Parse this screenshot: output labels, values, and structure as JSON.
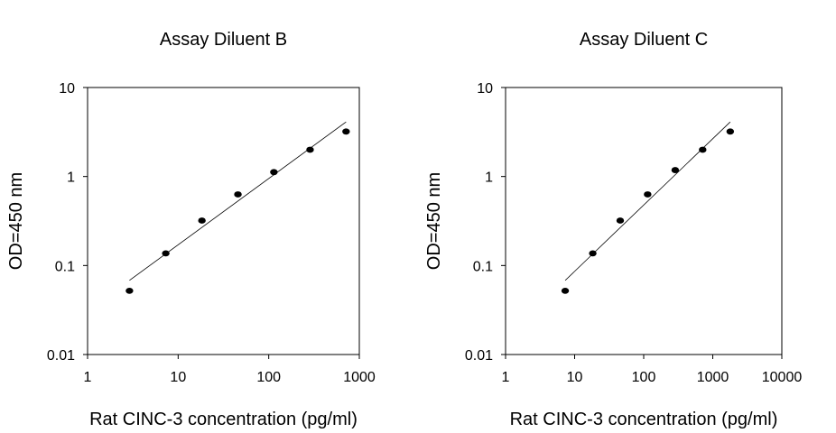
{
  "chart_data": [
    {
      "type": "scatter",
      "title": "Assay Diluent B",
      "xlabel": "Rat CINC-3 concentration (pg/ml)",
      "ylabel": "OD=450 nm",
      "xscale": "log",
      "yscale": "log",
      "xlim": [
        1,
        1000
      ],
      "ylim": [
        0.01,
        10
      ],
      "xticks": [
        "1",
        "10",
        "100",
        "1000"
      ],
      "yticks": [
        "0.01",
        "0.1",
        "1",
        "10"
      ],
      "grid": false,
      "series": [
        {
          "x": [
            2.9,
            7.3,
            18.3,
            45.7,
            114,
            286,
            714
          ],
          "y": [
            0.052,
            0.137,
            0.32,
            0.63,
            1.12,
            2.0,
            3.2
          ]
        }
      ],
      "fit_line": {
        "x": [
          2.9,
          714
        ],
        "y": [
          0.068,
          4.1
        ]
      }
    },
    {
      "type": "scatter",
      "title": "Assay Diluent C",
      "xlabel": "Rat CINC-3 concentration (pg/ml)",
      "ylabel": "OD=450 nm",
      "xscale": "log",
      "yscale": "log",
      "xlim": [
        1,
        10000
      ],
      "ylim": [
        0.01,
        10
      ],
      "xticks": [
        "1",
        "10",
        "100",
        "1000",
        "10000"
      ],
      "yticks": [
        "0.01",
        "0.1",
        "1",
        "10"
      ],
      "grid": false,
      "series": [
        {
          "x": [
            7.3,
            18.3,
            45.7,
            114,
            286,
            714,
            1790
          ],
          "y": [
            0.052,
            0.137,
            0.32,
            0.63,
            1.18,
            2.0,
            3.2
          ]
        }
      ],
      "fit_line": {
        "x": [
          7.3,
          1790
        ],
        "y": [
          0.068,
          4.1
        ]
      }
    }
  ]
}
